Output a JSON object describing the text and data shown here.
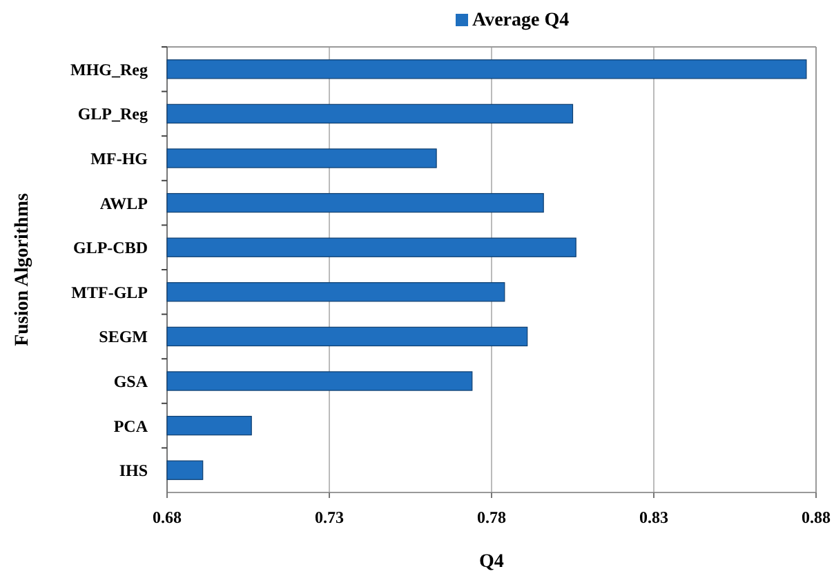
{
  "chart_data": {
    "type": "bar",
    "orientation": "horizontal",
    "xlabel": "Q4",
    "ylabel": "Fusion Algorithms",
    "categories": [
      "MHG_Reg",
      "GLP_Reg",
      "MF-HG",
      "AWLP",
      "GLP-CBD",
      "MTF-GLP",
      "SEGM",
      "GSA",
      "PCA",
      "IHS"
    ],
    "series": [
      {
        "name": "Average Q4",
        "color": "#1f6fbf",
        "values": [
          0.877,
          0.805,
          0.763,
          0.796,
          0.806,
          0.784,
          0.791,
          0.774,
          0.706,
          0.691
        ]
      }
    ],
    "xlim": [
      0.68,
      0.88
    ],
    "xticks": [
      0.68,
      0.73,
      0.78,
      0.83,
      0.88
    ],
    "grid": "x",
    "legend": "top"
  }
}
